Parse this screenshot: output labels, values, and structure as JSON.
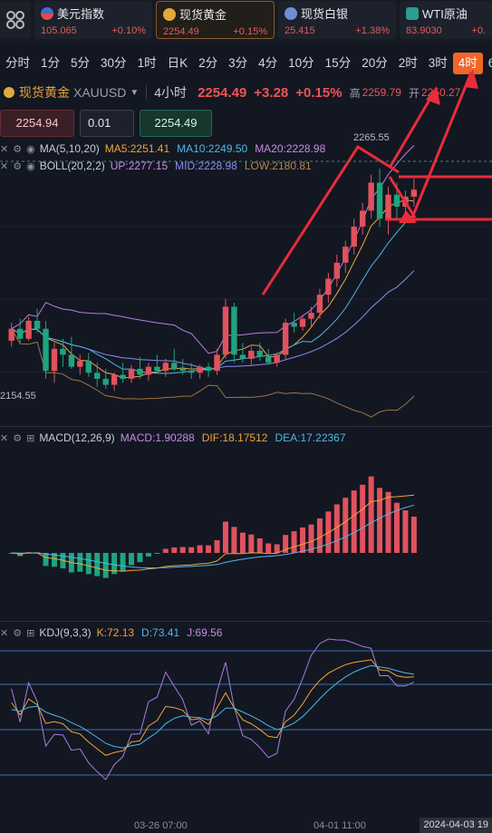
{
  "tickers": [
    {
      "name": "美元指数",
      "price": "105.065",
      "change": "+0.10%",
      "color": "#3b6fd1"
    },
    {
      "name": "现货黄金",
      "price": "2254.49",
      "change": "+0.15%",
      "color": "#e2a93b"
    },
    {
      "name": "现货白银",
      "price": "25.415",
      "change": "+1.38%",
      "color": "#6d8fd6"
    },
    {
      "name": "WTI原油",
      "price": "83.9030",
      "change": "+0.",
      "color": "#2a9d8f"
    }
  ],
  "periods": [
    "分时",
    "1分",
    "5分",
    "30分",
    "1时",
    "日K",
    "2分",
    "3分",
    "4分",
    "10分",
    "15分",
    "20分",
    "2时",
    "3时",
    "4时",
    "6"
  ],
  "active_period": "4时",
  "symbol": {
    "name": "现货黄金",
    "code": "XAUUSD",
    "timeframe": "4小时",
    "price": "2254.49",
    "change": "+3.28",
    "change_pct": "+0.15%",
    "high_label": "高",
    "high_value": "2259.79",
    "open_label": "开",
    "open_value": "2250.27"
  },
  "order": {
    "sell_price": "2254.94",
    "quantity": "0.01",
    "buy_price": "2254.49"
  },
  "indicators": {
    "ma": {
      "label": "MA(5,10,20)",
      "ma5": "MA5:2251.41",
      "ma10": "MA10:2249.50",
      "ma20": "MA20:2228.98"
    },
    "boll": {
      "label": "BOLL(20,2,2)",
      "up": "UP:2277.15",
      "mid": "MID:2228.98",
      "low": "LOW:2180.81"
    },
    "macd": {
      "label": "MACD(12,26,9)",
      "macd": "MACD:1.90288",
      "dif": "DIF:18.17512",
      "dea": "DEA:17.22367"
    },
    "kdj": {
      "label": "KDJ(9,3,3)",
      "k": "K:72.13",
      "d": "D:73.41",
      "j": "J:69.56"
    }
  },
  "chart_annotations": {
    "high_mark": "2265.55",
    "low_mark": "2154.55"
  },
  "time_axis": [
    "03-26 07:00",
    "04-01 11:00"
  ],
  "time_current": "2024-04-03 19",
  "chart_data": {
    "type": "candlestick",
    "candles": [
      [
        2179.0,
        2188.0,
        2176.0,
        2185.0
      ],
      [
        2185.0,
        2190.0,
        2178.0,
        2180.0
      ],
      [
        2180.0,
        2191.0,
        2179.0,
        2189.0
      ],
      [
        2189.0,
        2195.0,
        2183.0,
        2185.0
      ],
      [
        2185.0,
        2189.0,
        2160.0,
        2164.0
      ],
      [
        2164.0,
        2178.0,
        2158.0,
        2175.0
      ],
      [
        2175.0,
        2180.0,
        2166.0,
        2172.0
      ],
      [
        2172.0,
        2181.0,
        2165.0,
        2166.0
      ],
      [
        2166.0,
        2172.0,
        2162.0,
        2169.0
      ],
      [
        2169.0,
        2173.0,
        2161.0,
        2163.0
      ],
      [
        2163.0,
        2168.0,
        2156.0,
        2160.0
      ],
      [
        2160.0,
        2165.0,
        2155.0,
        2157.0
      ],
      [
        2157.0,
        2163.0,
        2154.0,
        2162.0
      ],
      [
        2162.0,
        2168.0,
        2158.0,
        2160.0
      ],
      [
        2160.0,
        2167.0,
        2158.0,
        2165.0
      ],
      [
        2165.0,
        2171.0,
        2160.0,
        2162.0
      ],
      [
        2162.0,
        2168.0,
        2159.0,
        2166.0
      ],
      [
        2166.0,
        2172.0,
        2163.0,
        2164.0
      ],
      [
        2164.0,
        2170.0,
        2161.0,
        2168.0
      ],
      [
        2168.0,
        2175.0,
        2164.0,
        2165.0
      ],
      [
        2165.0,
        2170.0,
        2162.0,
        2164.0
      ],
      [
        2164.0,
        2168.0,
        2160.0,
        2163.0
      ],
      [
        2163.0,
        2167.0,
        2160.0,
        2166.0
      ],
      [
        2166.0,
        2168.0,
        2161.0,
        2164.0
      ],
      [
        2164.0,
        2175.0,
        2162.0,
        2172.0
      ],
      [
        2172.0,
        2200.0,
        2170.0,
        2196.0
      ],
      [
        2196.0,
        2198.0,
        2168.0,
        2172.0
      ],
      [
        2172.0,
        2178.0,
        2168.0,
        2170.0
      ],
      [
        2170.0,
        2176.0,
        2167.0,
        2174.0
      ],
      [
        2174.0,
        2178.0,
        2169.0,
        2171.0
      ],
      [
        2171.0,
        2175.0,
        2168.0,
        2168.0
      ],
      [
        2168.0,
        2173.0,
        2166.0,
        2172.0
      ],
      [
        2172.0,
        2190.0,
        2170.0,
        2188.0
      ],
      [
        2188.0,
        2193.0,
        2183.0,
        2186.0
      ],
      [
        2186.0,
        2192.0,
        2184.0,
        2190.0
      ],
      [
        2190.0,
        2196.0,
        2186.0,
        2193.0
      ],
      [
        2193.0,
        2205.0,
        2190.0,
        2202.0
      ],
      [
        2202.0,
        2213.0,
        2198.0,
        2210.0
      ],
      [
        2210.0,
        2222.0,
        2206.0,
        2218.0
      ],
      [
        2218.0,
        2229.0,
        2213.0,
        2226.0
      ],
      [
        2226.0,
        2240.0,
        2222.0,
        2236.0
      ],
      [
        2236.0,
        2248.0,
        2232.0,
        2244.0
      ],
      [
        2244.0,
        2262.0,
        2240.0,
        2258.0
      ],
      [
        2258.0,
        2265.0,
        2236.0,
        2240.0
      ],
      [
        2240.0,
        2256.0,
        2232.0,
        2252.0
      ],
      [
        2252.0,
        2258.0,
        2240.0,
        2246.0
      ],
      [
        2246.0,
        2254.0,
        2238.0,
        2251.0
      ],
      [
        2251.0,
        2260.0,
        2246.0,
        2254.5
      ]
    ],
    "ylim": [
      2150,
      2270
    ]
  }
}
